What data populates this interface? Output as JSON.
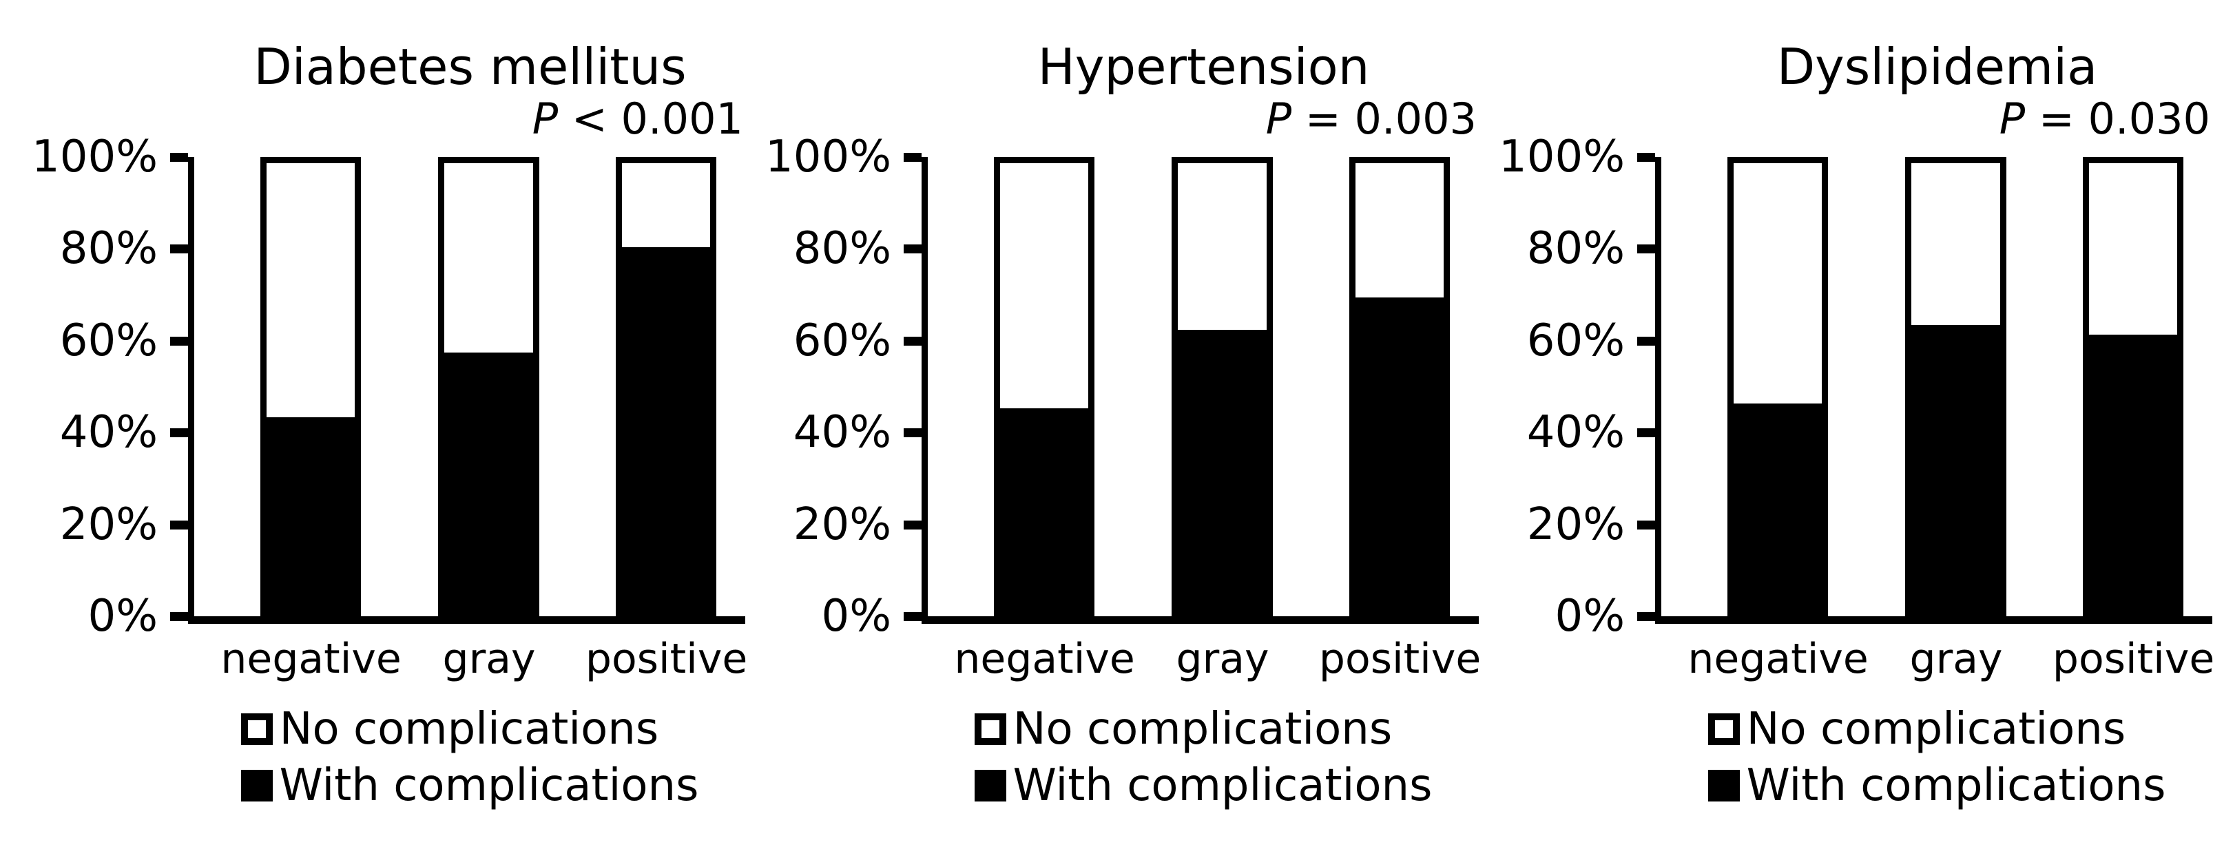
{
  "figure": {
    "background": "#ffffff",
    "text_color": "#000000",
    "axis_color": "#000000"
  },
  "y_axis": {
    "ticks": [
      "100%",
      "80%",
      "60%",
      "40%",
      "20%",
      "0%"
    ],
    "range": [
      0,
      100
    ],
    "grid": false
  },
  "chart_data": [
    {
      "type": "bar",
      "stacked": true,
      "title": "Diabetes mellitus",
      "p_label": "P",
      "p_value": "< 0.001",
      "categories": [
        "negative",
        "gray",
        "positive"
      ],
      "series": [
        {
          "name": "No complications",
          "color": "#ffffff",
          "values": [
            58,
            44,
            21
          ]
        },
        {
          "name": "With complications",
          "color": "#000000",
          "values": [
            42,
            56,
            79
          ]
        }
      ],
      "ylim": [
        0,
        100
      ],
      "legend_position": "bottom"
    },
    {
      "type": "bar",
      "stacked": true,
      "title": "Hypertension",
      "p_label": "P",
      "p_value": "= 0.003",
      "categories": [
        "negative",
        "gray",
        "positive"
      ],
      "series": [
        {
          "name": "No complications",
          "color": "#ffffff",
          "values": [
            56,
            39,
            32
          ]
        },
        {
          "name": "With complications",
          "color": "#000000",
          "values": [
            44,
            61,
            68
          ]
        }
      ],
      "ylim": [
        0,
        100
      ],
      "legend_position": "bottom"
    },
    {
      "type": "bar",
      "stacked": true,
      "title": "Dyslipidemia",
      "p_label": "P",
      "p_value": "= 0.030",
      "categories": [
        "negative",
        "gray",
        "positive"
      ],
      "series": [
        {
          "name": "No complications",
          "color": "#ffffff",
          "values": [
            55,
            38,
            40
          ]
        },
        {
          "name": "With complications",
          "color": "#000000",
          "values": [
            45,
            62,
            60
          ]
        }
      ],
      "ylim": [
        0,
        100
      ],
      "legend_position": "bottom"
    }
  ]
}
